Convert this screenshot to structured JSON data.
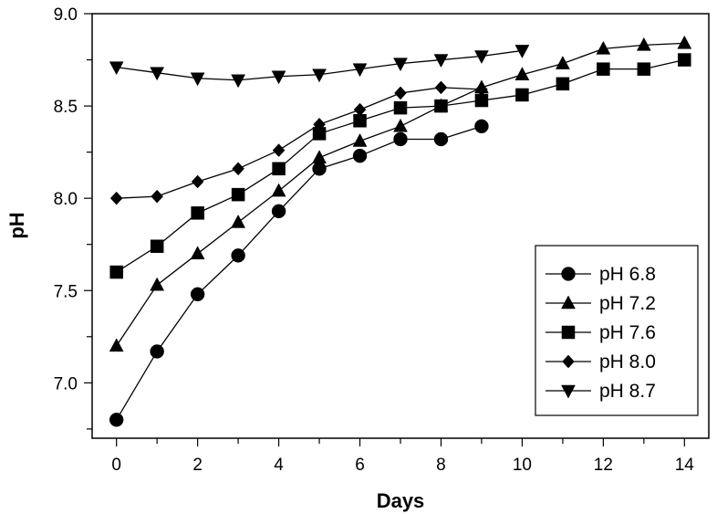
{
  "chart_data": {
    "type": "line",
    "xlabel": "Days",
    "ylabel": "pH",
    "xlim": [
      -0.6,
      14.6
    ],
    "ylim": [
      6.7,
      9.0
    ],
    "xticks": [
      0,
      2,
      4,
      6,
      8,
      10,
      12,
      14
    ],
    "xtick_labels": [
      "0",
      "2",
      "4",
      "6",
      "8",
      "10",
      "12",
      "14"
    ],
    "yticks": [
      7.0,
      7.5,
      8.0,
      8.5,
      9.0
    ],
    "ytick_labels": [
      "7.0",
      "7.5",
      "8.0",
      "8.5",
      "9.0"
    ],
    "grid": false,
    "legend_position": "bottom-right",
    "series": [
      {
        "name": "pH 6.8",
        "marker": "circle",
        "x": [
          0,
          1,
          2,
          3,
          4,
          5,
          6,
          7,
          8,
          9
        ],
        "y": [
          6.8,
          7.17,
          7.48,
          7.69,
          7.93,
          8.16,
          8.23,
          8.32,
          8.32,
          8.39
        ]
      },
      {
        "name": "pH 7.2",
        "marker": "triangle-up",
        "x": [
          0,
          1,
          2,
          3,
          4,
          5,
          6,
          7,
          8,
          9,
          10,
          11,
          12,
          13,
          14
        ],
        "y": [
          7.2,
          7.53,
          7.7,
          7.87,
          8.04,
          8.22,
          8.31,
          8.39,
          8.5,
          8.6,
          8.67,
          8.73,
          8.81,
          8.83,
          8.84
        ]
      },
      {
        "name": "pH 7.6",
        "marker": "square",
        "x": [
          0,
          1,
          2,
          3,
          4,
          5,
          6,
          7,
          8,
          9,
          10,
          11,
          12,
          13,
          14
        ],
        "y": [
          7.6,
          7.74,
          7.92,
          8.02,
          8.16,
          8.35,
          8.42,
          8.49,
          8.5,
          8.53,
          8.56,
          8.62,
          8.7,
          8.7,
          8.75
        ]
      },
      {
        "name": "pH 8.0",
        "marker": "diamond",
        "x": [
          0,
          1,
          2,
          3,
          4,
          5,
          6,
          7,
          8,
          9
        ],
        "y": [
          8.0,
          8.01,
          8.09,
          8.16,
          8.26,
          8.4,
          8.48,
          8.57,
          8.6,
          8.59
        ]
      },
      {
        "name": "pH 8.7",
        "marker": "triangle-down",
        "x": [
          0,
          1,
          2,
          3,
          4,
          5,
          6,
          7,
          8,
          9,
          10
        ],
        "y": [
          8.71,
          8.68,
          8.65,
          8.64,
          8.66,
          8.67,
          8.7,
          8.73,
          8.75,
          8.77,
          8.8
        ]
      }
    ]
  }
}
